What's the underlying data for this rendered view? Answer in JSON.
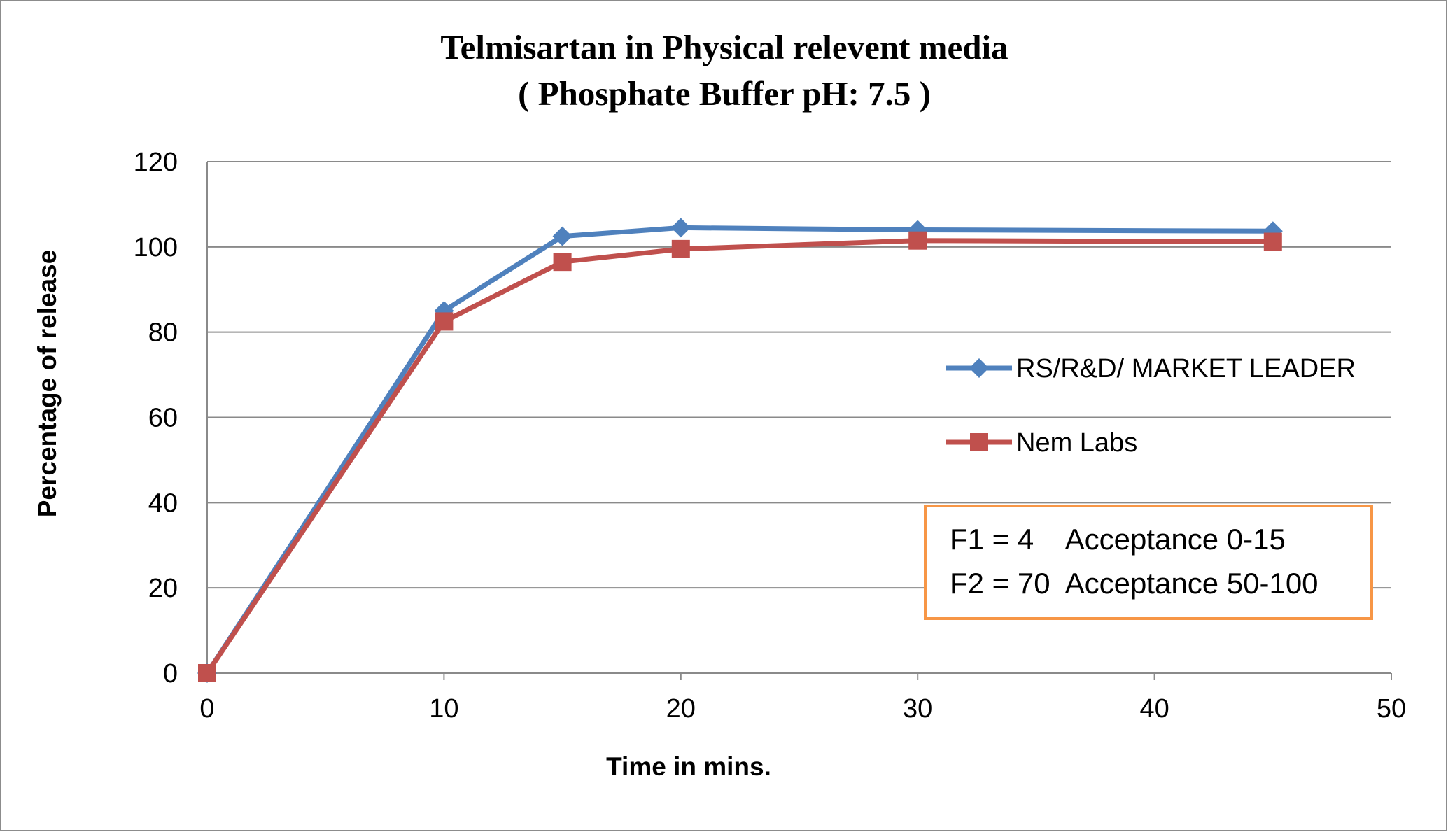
{
  "chart_data": {
    "type": "line",
    "title": "Telmisartan in Physical relevent media",
    "subtitle": "( Phosphate Buffer pH: 7.5 )",
    "xlabel": "Time in mins.",
    "ylabel": "Percentage of release",
    "xlim": [
      0,
      50
    ],
    "ylim": [
      0,
      120
    ],
    "x_ticks": [
      "0",
      "10",
      "20",
      "30",
      "40",
      "50"
    ],
    "y_ticks": [
      "0",
      "20",
      "40",
      "60",
      "80",
      "100",
      "120"
    ],
    "grid": "horizontal",
    "legend_position": "right",
    "series": [
      {
        "name": "RS/R&D/ MARKET LEADER",
        "color": "#4f81bd",
        "marker": "diamond",
        "x": [
          0,
          10,
          15,
          20,
          30,
          45
        ],
        "y": [
          0,
          85,
          102.5,
          104.5,
          104,
          103.7
        ]
      },
      {
        "name": "Nem Labs",
        "color": "#c0504d",
        "marker": "square",
        "x": [
          0,
          10,
          15,
          20,
          30,
          45
        ],
        "y": [
          0,
          82.5,
          96.5,
          99.5,
          101.5,
          101.2
        ]
      }
    ],
    "annotation": {
      "lines": [
        "F1 = 4    Acceptance 0-15",
        "F2 = 70  Acceptance 50-100"
      ],
      "border_color": "#f79646"
    }
  }
}
